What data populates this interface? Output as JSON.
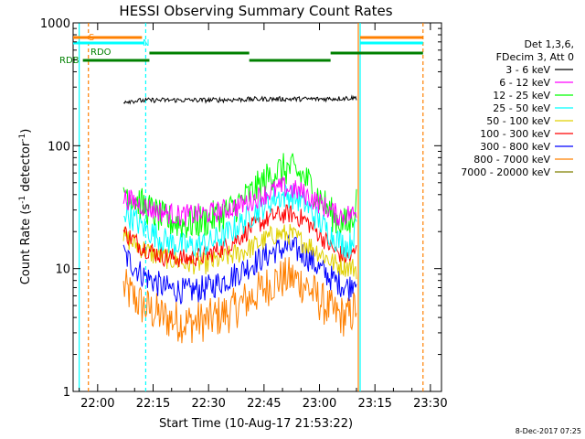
{
  "chart_data": {
    "type": "line",
    "title": "HESSI Observing Summary Count Rates",
    "xlabel": "Start Time (10-Aug-17 21:53:22)",
    "ylabel": "Count Rate (s",
    "ylabel_sup": "-1",
    "ylabel_rest": " detector",
    "ylabel_close": ")",
    "y_scale": "log",
    "ylim": [
      1,
      1000
    ],
    "xlim": [
      "21:53:22",
      "23:33:00"
    ],
    "x_ticks": [
      "22:00",
      "22:15",
      "22:30",
      "22:45",
      "23:00",
      "23:15",
      "23:30"
    ],
    "y_ticks": [
      "1",
      "10",
      "100",
      "1000"
    ],
    "legend_header": [
      "Det 1,3,6,",
      "FDecim 3, Att 0"
    ],
    "legend_position": "right",
    "footer": "8-Dec-2017 07:25",
    "flags": [
      {
        "label": "S",
        "color": "#ff8000"
      },
      {
        "label": "N",
        "color": "#00ffff"
      },
      {
        "label": "RDO",
        "color": "#008000"
      },
      {
        "label": "RDB",
        "color": "#008000"
      }
    ],
    "time_markers": [
      {
        "time": "21:55:00",
        "color": "#00ffff",
        "style": "solid"
      },
      {
        "time": "21:57:30",
        "color": "#ff8000",
        "style": "dashed"
      },
      {
        "time": "22:13:00",
        "color": "#00ffff",
        "style": "dashed"
      },
      {
        "time": "23:10:30",
        "color": "#ff8000",
        "style": "solid"
      },
      {
        "time": "23:11:00",
        "color": "#00ffff",
        "style": "solid"
      },
      {
        "time": "23:28:00",
        "color": "#ff8000",
        "style": "dashed"
      }
    ],
    "series": [
      {
        "name": "3 - 6 keV",
        "color": "#000000",
        "x": [
          "22:07",
          "22:15",
          "22:30",
          "22:45",
          "23:00",
          "23:10"
        ],
        "values": [
          230,
          235,
          235,
          240,
          240,
          245
        ]
      },
      {
        "name": "6 - 12 keV",
        "color": "#ff00ff",
        "x": [
          "22:07",
          "22:15",
          "22:22",
          "22:30",
          "22:38",
          "22:45",
          "22:50",
          "22:55",
          "23:00",
          "23:05",
          "23:10"
        ],
        "values": [
          38,
          30,
          27,
          28,
          32,
          40,
          46,
          42,
          34,
          27,
          28
        ]
      },
      {
        "name": "12 - 25 keV",
        "color": "#00ff00",
        "x": [
          "22:07",
          "22:12",
          "22:18",
          "22:24",
          "22:30",
          "22:36",
          "22:42",
          "22:48",
          "22:52",
          "22:56",
          "23:00",
          "23:04",
          "23:08",
          "23:10"
        ],
        "values": [
          45,
          33,
          25,
          23,
          25,
          30,
          42,
          62,
          65,
          55,
          38,
          26,
          22,
          35
        ]
      },
      {
        "name": "25 - 50 keV",
        "color": "#00ffff",
        "x": [
          "22:07",
          "22:12",
          "22:18",
          "22:24",
          "22:30",
          "22:36",
          "22:42",
          "22:48",
          "22:52",
          "22:56",
          "23:00",
          "23:04",
          "23:08",
          "23:10"
        ],
        "values": [
          30,
          22,
          17,
          15,
          16,
          20,
          28,
          38,
          40,
          34,
          24,
          18,
          15,
          22
        ]
      },
      {
        "name": "50 - 100 keV",
        "color": "#e0d000",
        "x": [
          "22:07",
          "22:15",
          "22:24",
          "22:30",
          "22:40",
          "22:48",
          "22:52",
          "22:58",
          "23:04",
          "23:10"
        ],
        "values": [
          18,
          13,
          11,
          11,
          14,
          19,
          19,
          15,
          11,
          10
        ]
      },
      {
        "name": "100 - 300 keV",
        "color": "#ff0000",
        "x": [
          "22:07",
          "22:12",
          "22:18",
          "22:24",
          "22:30",
          "22:36",
          "22:42",
          "22:48",
          "22:52",
          "22:56",
          "23:00",
          "23:04",
          "23:08",
          "23:10"
        ],
        "values": [
          20,
          15,
          12.5,
          12,
          13,
          16,
          22,
          27,
          28,
          25,
          19,
          14,
          12,
          14
        ]
      },
      {
        "name": "300 - 800 keV",
        "color": "#0000ff",
        "x": [
          "22:07",
          "22:12",
          "22:18",
          "22:24",
          "22:30",
          "22:36",
          "22:42",
          "22:48",
          "22:52",
          "22:56",
          "23:00",
          "23:04",
          "23:08",
          "23:10"
        ],
        "values": [
          13,
          9,
          7,
          6.5,
          7,
          8.5,
          11,
          14,
          15,
          13,
          10,
          8,
          7,
          9
        ]
      },
      {
        "name": "800 - 7000 keV",
        "color": "#ff8000",
        "x": [
          "22:07",
          "22:12",
          "22:18",
          "22:24",
          "22:30",
          "22:36",
          "22:42",
          "22:48",
          "22:52",
          "22:56",
          "23:00",
          "23:04",
          "23:08",
          "23:10"
        ],
        "values": [
          7,
          5,
          4,
          3.6,
          3.8,
          4.5,
          6,
          8,
          8.5,
          7.5,
          5.5,
          4.3,
          4,
          5
        ]
      },
      {
        "name": "7000 - 20000 keV",
        "color": "#808000",
        "x": [],
        "values": []
      }
    ]
  }
}
